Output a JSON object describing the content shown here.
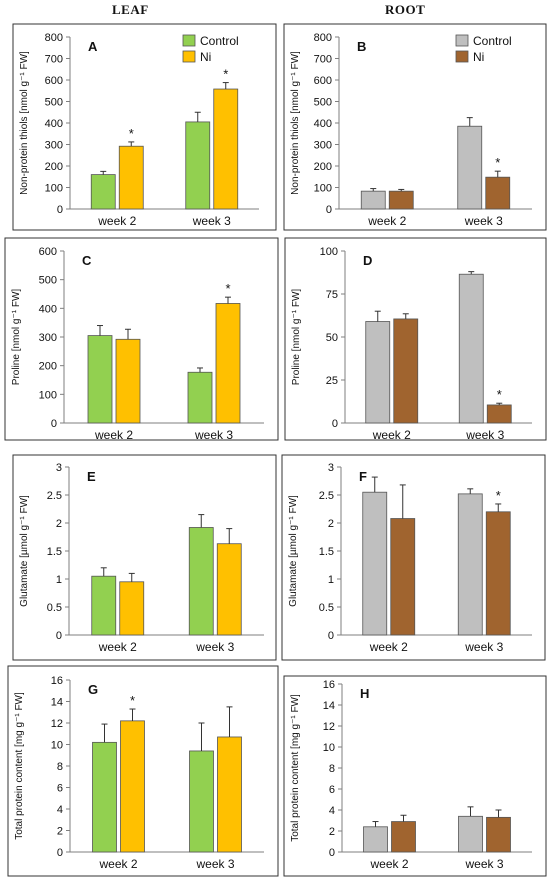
{
  "column_titles": {
    "leaf": "LEAF",
    "root": "ROOT"
  },
  "colors": {
    "leaf_control": "#92d050",
    "leaf_ni": "#ffc000",
    "root_control": "#bfbfbf",
    "root_ni": "#a0642f",
    "frame": "#333333"
  },
  "chart_data": [
    {
      "id": "A",
      "type": "bar",
      "letter": "A",
      "ylabel": "Non-protein thiols [nmol g⁻¹ FW]",
      "ylim": [
        0,
        800
      ],
      "yticks": [
        "0",
        "100",
        "200",
        "300",
        "400",
        "500",
        "600",
        "700",
        "800"
      ],
      "categories": [
        "week 2",
        "week 3"
      ],
      "series": [
        {
          "name": "Control",
          "values": [
            160,
            405
          ],
          "errors": [
            15,
            45
          ],
          "sig": [
            "",
            ""
          ]
        },
        {
          "name": "Ni",
          "values": [
            292,
            558
          ],
          "errors": [
            20,
            30
          ],
          "sig": [
            "*",
            "*"
          ]
        }
      ],
      "legend": "top-right"
    },
    {
      "id": "B",
      "type": "bar",
      "letter": "B",
      "ylabel": "Non-protein thiols [nmol g⁻¹ FW]",
      "ylim": [
        0,
        800
      ],
      "yticks": [
        "0",
        "100",
        "200",
        "300",
        "400",
        "500",
        "600",
        "700",
        "800"
      ],
      "categories": [
        "week 2",
        "week 3"
      ],
      "series": [
        {
          "name": "Control",
          "values": [
            83,
            385
          ],
          "errors": [
            12,
            40
          ],
          "sig": [
            "",
            ""
          ]
        },
        {
          "name": "Ni",
          "values": [
            83,
            148
          ],
          "errors": [
            8,
            28
          ],
          "sig": [
            "",
            "*"
          ]
        }
      ],
      "legend": "top-right"
    },
    {
      "id": "C",
      "type": "bar",
      "letter": "C",
      "ylabel": "Proline [nmol g⁻¹ FW]",
      "ylim": [
        0,
        600
      ],
      "yticks": [
        "0",
        "100",
        "200",
        "300",
        "400",
        "500",
        "600"
      ],
      "categories": [
        "week 2",
        "week 3"
      ],
      "series": [
        {
          "name": "Control",
          "values": [
            305,
            177
          ],
          "errors": [
            35,
            15
          ],
          "sig": [
            "",
            ""
          ]
        },
        {
          "name": "Ni",
          "values": [
            292,
            417
          ],
          "errors": [
            35,
            22
          ],
          "sig": [
            "",
            "*"
          ]
        }
      ]
    },
    {
      "id": "D",
      "type": "bar",
      "letter": "D",
      "ylabel": "Proline [nmol g⁻¹ FW]",
      "ylim": [
        0,
        100
      ],
      "yticks": [
        "0",
        "25",
        "50",
        "75",
        "100"
      ],
      "categories": [
        "week 2",
        "week 3"
      ],
      "series": [
        {
          "name": "Control",
          "values": [
            59,
            86.5
          ],
          "errors": [
            6,
            1.5
          ],
          "sig": [
            "",
            ""
          ]
        },
        {
          "name": "Ni",
          "values": [
            60.5,
            10.5
          ],
          "errors": [
            3,
            1
          ],
          "sig": [
            "",
            "*"
          ]
        }
      ]
    },
    {
      "id": "E",
      "type": "bar",
      "letter": "E",
      "ylabel": "Glutamate [µmol g⁻¹ FW]",
      "ylim": [
        0,
        3
      ],
      "yticks": [
        "0",
        "0.5",
        "1",
        "1.5",
        "2",
        "2.5",
        "3"
      ],
      "categories": [
        "week 2",
        "week 3"
      ],
      "series": [
        {
          "name": "Control",
          "values": [
            1.05,
            1.92
          ],
          "errors": [
            0.15,
            0.23
          ],
          "sig": [
            "",
            ""
          ]
        },
        {
          "name": "Ni",
          "values": [
            0.95,
            1.63
          ],
          "errors": [
            0.15,
            0.27
          ],
          "sig": [
            "",
            ""
          ]
        }
      ]
    },
    {
      "id": "F",
      "type": "bar",
      "letter": "F",
      "ylabel": "Glutamate [µmol g⁻¹ FW]",
      "ylim": [
        0,
        3
      ],
      "yticks": [
        "0",
        "0.5",
        "1",
        "1.5",
        "2",
        "2.5",
        "3"
      ],
      "categories": [
        "week 2",
        "week 3"
      ],
      "series": [
        {
          "name": "Control",
          "values": [
            2.55,
            2.52
          ],
          "errors": [
            0.27,
            0.09
          ],
          "sig": [
            "",
            ""
          ]
        },
        {
          "name": "Ni",
          "values": [
            2.08,
            2.2
          ],
          "errors": [
            0.6,
            0.14
          ],
          "sig": [
            "",
            "*"
          ]
        }
      ]
    },
    {
      "id": "G",
      "type": "bar",
      "letter": "G",
      "ylabel": "Total protein content [mg g⁻¹ FW]",
      "ylim": [
        0,
        16
      ],
      "yticks": [
        "0",
        "2",
        "4",
        "6",
        "8",
        "10",
        "12",
        "14",
        "16"
      ],
      "categories": [
        "week 2",
        "week 3"
      ],
      "series": [
        {
          "name": "Control",
          "values": [
            10.2,
            9.4
          ],
          "errors": [
            1.7,
            2.6
          ],
          "sig": [
            "",
            ""
          ]
        },
        {
          "name": "Ni",
          "values": [
            12.2,
            10.7
          ],
          "errors": [
            1.1,
            2.8
          ],
          "sig": [
            "*",
            ""
          ]
        }
      ]
    },
    {
      "id": "H",
      "type": "bar",
      "letter": "H",
      "ylabel": "Total protein content [mg g⁻¹ FW]",
      "ylim": [
        0,
        16
      ],
      "yticks": [
        "0",
        "2",
        "4",
        "6",
        "8",
        "10",
        "12",
        "14",
        "16"
      ],
      "categories": [
        "week 2",
        "week 3"
      ],
      "series": [
        {
          "name": "Control",
          "values": [
            2.4,
            3.4
          ],
          "errors": [
            0.5,
            0.9
          ],
          "sig": [
            "",
            ""
          ]
        },
        {
          "name": "Ni",
          "values": [
            2.9,
            3.3
          ],
          "errors": [
            0.6,
            0.7
          ],
          "sig": [
            "",
            ""
          ]
        }
      ]
    }
  ]
}
